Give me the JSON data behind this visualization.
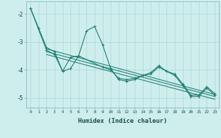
{
  "xlabel": "Humidex (Indice chaleur)",
  "background_color": "#ceeeed",
  "grid_color": "#aed4d3",
  "line_color": "#1a7a6e",
  "xlim": [
    -0.5,
    23.5
  ],
  "ylim": [
    -5.35,
    -1.55
  ],
  "yticks": [
    -5,
    -4,
    -3,
    -2
  ],
  "xticks": [
    0,
    1,
    2,
    3,
    4,
    5,
    6,
    7,
    8,
    9,
    10,
    11,
    12,
    13,
    14,
    15,
    16,
    17,
    18,
    19,
    20,
    21,
    22,
    23
  ],
  "series1": [
    [
      0,
      -1.8
    ],
    [
      1,
      -2.5
    ],
    [
      2,
      -3.2
    ],
    [
      3,
      -3.35
    ],
    [
      4,
      -4.05
    ],
    [
      5,
      -3.95
    ],
    [
      6,
      -3.5
    ],
    [
      7,
      -2.6
    ],
    [
      8,
      -2.45
    ],
    [
      9,
      -3.1
    ],
    [
      10,
      -3.95
    ],
    [
      11,
      -4.35
    ],
    [
      12,
      -4.4
    ],
    [
      13,
      -4.35
    ],
    [
      14,
      -4.2
    ],
    [
      15,
      -4.1
    ],
    [
      16,
      -3.85
    ],
    [
      17,
      -4.05
    ],
    [
      18,
      -4.15
    ],
    [
      19,
      -4.5
    ],
    [
      20,
      -4.9
    ],
    [
      21,
      -4.9
    ],
    [
      22,
      -4.6
    ],
    [
      23,
      -4.85
    ]
  ],
  "series2": [
    [
      0,
      -1.8
    ],
    [
      2,
      -3.3
    ],
    [
      3,
      -3.45
    ],
    [
      4,
      -4.05
    ],
    [
      5,
      -3.55
    ],
    [
      6,
      -3.5
    ],
    [
      9,
      -3.9
    ],
    [
      10,
      -4.0
    ],
    [
      11,
      -4.3
    ],
    [
      12,
      -4.35
    ],
    [
      13,
      -4.3
    ],
    [
      14,
      -4.2
    ],
    [
      15,
      -4.15
    ],
    [
      16,
      -3.9
    ],
    [
      17,
      -4.05
    ],
    [
      18,
      -4.2
    ],
    [
      19,
      -4.55
    ],
    [
      20,
      -4.95
    ],
    [
      21,
      -4.95
    ],
    [
      22,
      -4.65
    ],
    [
      23,
      -4.9
    ]
  ],
  "trend_lines": [
    [
      [
        2,
        -3.25
      ],
      [
        23,
        -4.88
      ]
    ],
    [
      [
        2,
        -3.35
      ],
      [
        23,
        -4.95
      ]
    ],
    [
      [
        2,
        -3.45
      ],
      [
        23,
        -5.05
      ]
    ]
  ]
}
